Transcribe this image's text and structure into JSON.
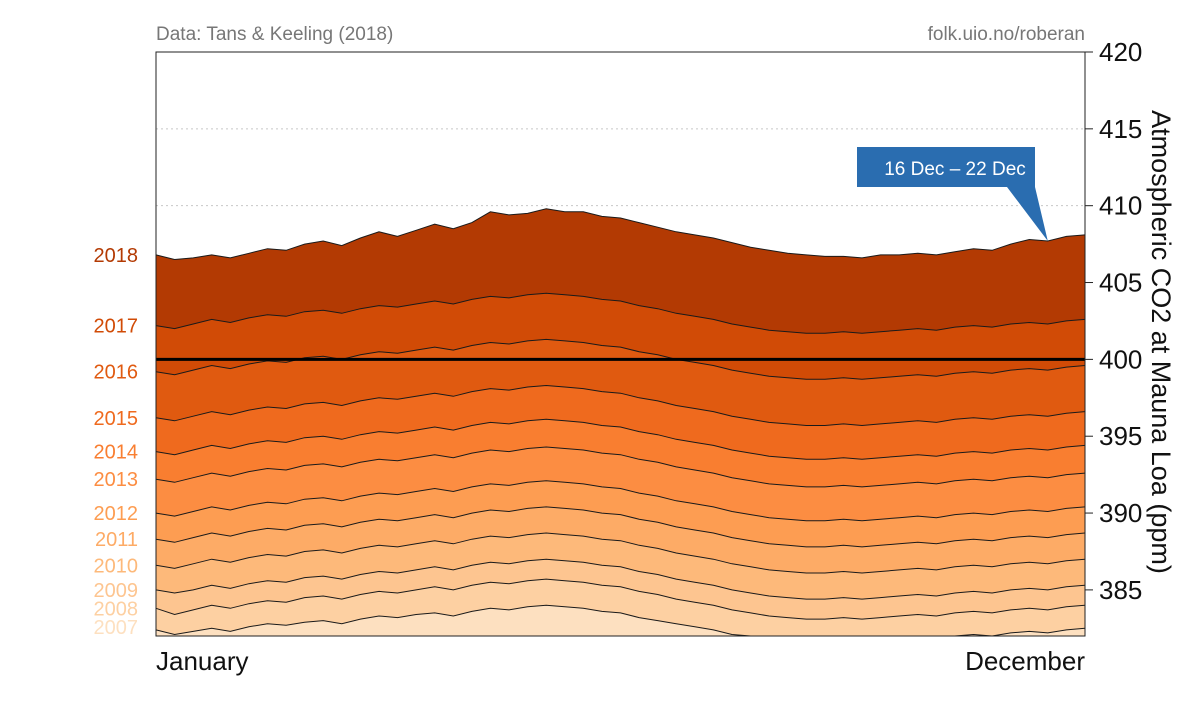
{
  "source_left": "Data: Tans & Keeling (2018)",
  "source_right": "folk.uio.no/roberan",
  "callout": {
    "text": "16 Dec – 22 Dec",
    "color": "#2a6db0"
  },
  "reference_line_value": 400,
  "chart_data": {
    "type": "area",
    "title": "",
    "ylabel": "Atmospheric CO2 at Mauna Loa (ppm)",
    "x_start_label": "January",
    "x_end_label": "December",
    "ylim": [
      382,
      420
    ],
    "y_ticks": [
      385,
      390,
      395,
      400,
      405,
      410,
      415,
      420
    ],
    "grid": "horizontal dotted",
    "y_axis_position": "right",
    "weeks": 51,
    "series": [
      {
        "name": "2007",
        "color": "#fde0c0",
        "values": [
          382.4,
          382.1,
          382.3,
          382.5,
          382.3,
          382.6,
          382.8,
          382.7,
          382.9,
          383.0,
          382.8,
          383.1,
          383.3,
          383.2,
          383.4,
          383.5,
          383.3,
          383.6,
          383.8,
          383.7,
          383.9,
          384.0,
          383.9,
          383.8,
          383.6,
          383.5,
          383.2,
          383.0,
          382.8,
          382.6,
          382.4,
          382.1,
          381.9,
          381.8,
          381.7,
          381.6,
          381.6,
          381.7,
          381.6,
          381.7,
          381.8,
          381.9,
          381.8,
          382.0,
          382.1,
          382.0,
          382.2,
          382.3,
          382.2,
          382.4,
          382.5
        ]
      },
      {
        "name": "2008",
        "color": "#fdd0a2",
        "values": [
          383.8,
          383.4,
          383.7,
          384.0,
          383.8,
          384.1,
          384.3,
          384.2,
          384.5,
          384.6,
          384.4,
          384.7,
          384.9,
          384.8,
          385.0,
          385.2,
          385.0,
          385.3,
          385.5,
          385.4,
          385.6,
          385.7,
          385.6,
          385.5,
          385.3,
          385.2,
          384.9,
          384.7,
          384.4,
          384.2,
          384.0,
          383.7,
          383.5,
          383.3,
          383.2,
          383.1,
          383.1,
          383.2,
          383.1,
          383.2,
          383.3,
          383.4,
          383.3,
          383.5,
          383.6,
          383.5,
          383.7,
          383.8,
          383.7,
          383.9,
          384.0
        ]
      },
      {
        "name": "2009",
        "color": "#fdc590",
        "values": [
          385.0,
          384.8,
          385.0,
          385.3,
          385.1,
          385.4,
          385.6,
          385.5,
          385.8,
          385.9,
          385.7,
          386.0,
          386.2,
          386.1,
          386.3,
          386.5,
          386.3,
          386.6,
          386.8,
          386.7,
          386.9,
          387.0,
          386.9,
          386.8,
          386.6,
          386.5,
          386.2,
          386.0,
          385.7,
          385.5,
          385.3,
          385.0,
          384.8,
          384.6,
          384.5,
          384.4,
          384.4,
          384.5,
          384.4,
          384.5,
          384.6,
          384.7,
          384.6,
          384.8,
          384.9,
          384.8,
          385.0,
          385.1,
          385.0,
          385.2,
          385.3
        ]
      },
      {
        "name": "2010",
        "color": "#fdb97a",
        "values": [
          386.6,
          386.4,
          386.7,
          387.0,
          386.8,
          387.1,
          387.3,
          387.2,
          387.5,
          387.6,
          387.4,
          387.7,
          387.9,
          387.8,
          388.0,
          388.2,
          388.0,
          388.3,
          388.5,
          388.4,
          388.6,
          388.7,
          388.6,
          388.5,
          388.3,
          388.2,
          387.9,
          387.7,
          387.4,
          387.2,
          387.0,
          386.7,
          386.5,
          386.3,
          386.2,
          386.1,
          386.1,
          386.2,
          386.1,
          386.2,
          386.3,
          386.4,
          386.3,
          386.5,
          386.6,
          386.5,
          386.7,
          386.8,
          386.7,
          386.9,
          387.0
        ]
      },
      {
        "name": "2011",
        "color": "#fdab66",
        "values": [
          388.3,
          388.1,
          388.4,
          388.7,
          388.5,
          388.8,
          389.0,
          388.9,
          389.2,
          389.3,
          389.1,
          389.4,
          389.6,
          389.5,
          389.7,
          389.9,
          389.7,
          390.0,
          390.2,
          390.1,
          390.3,
          390.4,
          390.3,
          390.2,
          390.0,
          389.9,
          389.6,
          389.4,
          389.1,
          388.9,
          388.7,
          388.4,
          388.2,
          388.0,
          387.9,
          387.8,
          387.8,
          387.9,
          387.8,
          387.9,
          388.0,
          388.1,
          388.0,
          388.2,
          388.3,
          388.2,
          388.4,
          388.5,
          388.4,
          388.6,
          388.7
        ]
      },
      {
        "name": "2012",
        "color": "#fd9d52",
        "values": [
          390.0,
          389.8,
          390.1,
          390.4,
          390.2,
          390.5,
          390.7,
          390.6,
          390.9,
          391.0,
          390.8,
          391.1,
          391.3,
          391.2,
          391.4,
          391.6,
          391.4,
          391.7,
          391.9,
          391.8,
          392.0,
          392.1,
          392.0,
          391.9,
          391.7,
          391.6,
          391.3,
          391.1,
          390.8,
          390.6,
          390.4,
          390.1,
          389.9,
          389.7,
          389.6,
          389.5,
          389.5,
          389.6,
          389.5,
          389.6,
          389.7,
          389.8,
          389.7,
          389.9,
          390.0,
          389.9,
          390.1,
          390.2,
          390.1,
          390.3,
          390.4
        ]
      },
      {
        "name": "2013",
        "color": "#fc8d42",
        "values": [
          392.2,
          392.0,
          392.3,
          392.6,
          392.4,
          392.7,
          392.9,
          392.8,
          393.1,
          393.2,
          393.0,
          393.3,
          393.5,
          393.4,
          393.6,
          393.8,
          393.6,
          393.9,
          394.1,
          394.0,
          394.2,
          394.3,
          394.2,
          394.1,
          393.9,
          393.8,
          393.5,
          393.3,
          393.0,
          392.8,
          392.6,
          392.3,
          392.1,
          391.9,
          391.8,
          391.7,
          391.7,
          391.8,
          391.7,
          391.8,
          391.9,
          392.0,
          391.9,
          392.1,
          392.2,
          392.1,
          392.3,
          392.4,
          392.3,
          392.5,
          392.6
        ]
      },
      {
        "name": "2014",
        "color": "#f97e30",
        "values": [
          394.0,
          393.8,
          394.1,
          394.4,
          394.2,
          394.5,
          394.7,
          394.6,
          394.9,
          395.0,
          394.8,
          395.1,
          395.3,
          395.2,
          395.4,
          395.6,
          395.4,
          395.7,
          395.9,
          395.8,
          396.0,
          396.1,
          396.0,
          395.9,
          395.7,
          395.6,
          395.3,
          395.1,
          394.8,
          394.6,
          394.4,
          394.1,
          393.9,
          393.7,
          393.6,
          393.5,
          393.5,
          393.6,
          393.5,
          393.6,
          393.7,
          393.8,
          393.7,
          393.9,
          394.0,
          393.9,
          394.1,
          394.2,
          394.1,
          394.3,
          394.4
        ]
      },
      {
        "name": "2015",
        "color": "#ef6a1e",
        "values": [
          396.2,
          396.0,
          396.3,
          396.6,
          396.4,
          396.7,
          396.9,
          396.8,
          397.1,
          397.2,
          397.0,
          397.3,
          397.5,
          397.4,
          397.6,
          397.8,
          397.6,
          397.9,
          398.1,
          398.0,
          398.2,
          398.3,
          398.2,
          398.1,
          397.9,
          397.8,
          397.5,
          397.3,
          397.0,
          396.8,
          396.6,
          396.3,
          396.1,
          395.9,
          395.8,
          395.7,
          395.7,
          395.8,
          395.7,
          395.8,
          395.9,
          396.0,
          395.9,
          396.1,
          396.2,
          396.1,
          396.3,
          396.4,
          396.3,
          396.5,
          396.6
        ]
      },
      {
        "name": "2016",
        "color": "#e05a10",
        "values": [
          399.2,
          399.0,
          399.3,
          399.6,
          399.4,
          399.7,
          399.9,
          399.8,
          400.1,
          400.2,
          400.0,
          400.3,
          400.5,
          400.4,
          400.6,
          400.8,
          400.6,
          400.9,
          401.1,
          401.0,
          401.2,
          401.3,
          401.2,
          401.1,
          400.9,
          400.8,
          400.5,
          400.3,
          400.0,
          399.8,
          399.6,
          399.3,
          399.1,
          398.9,
          398.8,
          398.7,
          398.7,
          398.8,
          398.7,
          398.8,
          398.9,
          399.0,
          398.9,
          399.1,
          399.2,
          399.1,
          399.3,
          399.4,
          399.3,
          399.5,
          399.6
        ]
      },
      {
        "name": "2017",
        "color": "#d14b06",
        "values": [
          402.2,
          402.0,
          402.3,
          402.6,
          402.4,
          402.7,
          402.9,
          402.8,
          403.1,
          403.2,
          403.0,
          403.3,
          403.5,
          403.4,
          403.6,
          403.8,
          403.6,
          403.9,
          404.1,
          404.0,
          404.2,
          404.3,
          404.2,
          404.1,
          403.9,
          403.8,
          403.5,
          403.3,
          403.0,
          402.8,
          402.6,
          402.3,
          402.1,
          401.9,
          401.8,
          401.7,
          401.7,
          401.8,
          401.7,
          401.8,
          401.9,
          402.0,
          401.9,
          402.1,
          402.2,
          402.1,
          402.3,
          402.4,
          402.3,
          402.5,
          402.6
        ]
      },
      {
        "name": "2018",
        "color": "#b33a03",
        "values": [
          406.8,
          406.5,
          406.6,
          406.8,
          406.6,
          406.9,
          407.2,
          407.1,
          407.5,
          407.7,
          407.4,
          407.9,
          408.3,
          408.0,
          408.4,
          408.8,
          408.5,
          408.9,
          409.6,
          409.4,
          409.5,
          409.8,
          409.6,
          409.6,
          409.3,
          409.2,
          408.9,
          408.6,
          408.3,
          408.1,
          407.9,
          407.6,
          407.3,
          407.1,
          406.9,
          406.8,
          406.7,
          406.7,
          406.6,
          406.8,
          406.8,
          406.9,
          406.8,
          407.0,
          407.2,
          407.1,
          407.5,
          407.8,
          407.7,
          408.0,
          408.1
        ]
      }
    ]
  }
}
